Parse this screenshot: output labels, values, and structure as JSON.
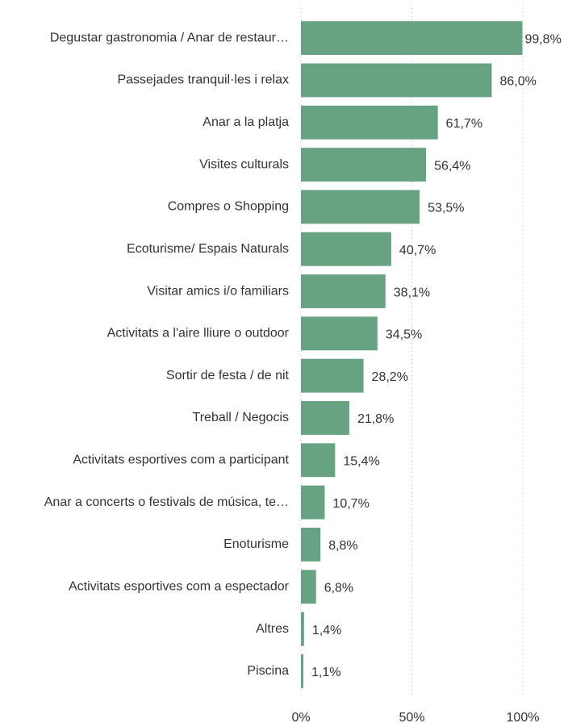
{
  "chart_data": {
    "type": "barh",
    "categories": [
      "Degustar gastronomia / Anar de restaur…",
      "Passejades tranquil·les i relax",
      "Anar a la platja",
      "Visites culturals",
      "Compres o Shopping",
      "Ecoturisme/ Espais Naturals",
      "Visitar amics i/o familiars",
      "Activitats a l'aire lliure o outdoor",
      "Sortir de festa / de nit",
      "Treball / Negocis",
      "Activitats esportives com a participant",
      "Anar a concerts o festivals de música, te…",
      "Enoturisme",
      "Activitats esportives com a espectador",
      "Altres",
      "Piscina"
    ],
    "values": [
      99.8,
      86.0,
      61.7,
      56.4,
      53.5,
      40.7,
      38.1,
      34.5,
      28.2,
      21.8,
      15.4,
      10.7,
      8.8,
      6.8,
      1.4,
      1.1
    ],
    "value_labels": [
      "99,8%",
      "86,0%",
      "61,7%",
      "56,4%",
      "53,5%",
      "40,7%",
      "38,1%",
      "34,5%",
      "28,2%",
      "21,8%",
      "15,4%",
      "10,7%",
      "8,8%",
      "6,8%",
      "1,4%",
      "1,1%"
    ],
    "color": "#67a283",
    "xlim": [
      0,
      100
    ],
    "xticks": [
      {
        "value": 0,
        "label": "0%"
      },
      {
        "value": 50,
        "label": "50%"
      },
      {
        "value": 100,
        "label": "100%"
      }
    ],
    "grid": true
  }
}
